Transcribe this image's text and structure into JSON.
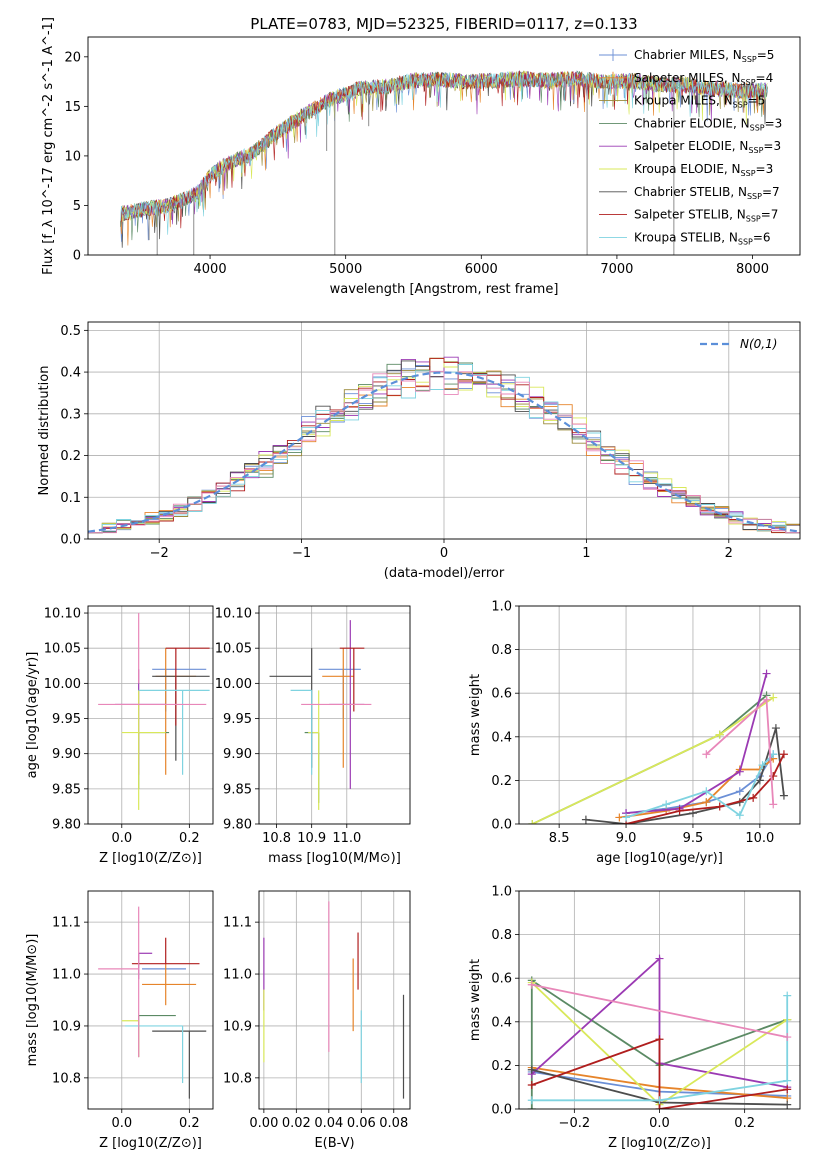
{
  "figure_title": "PLATE=0783, MJD=52325, FIBERID=0117, z=0.133",
  "colors": [
    "#6b8fd6",
    "#e6842a",
    "#9a8a3a",
    "#5b8a64",
    "#9b3ab3",
    "#d9e85a",
    "#4d4d4d",
    "#b01e1e",
    "#7fd3e0",
    "#e887b9"
  ],
  "chart_data": [
    {
      "id": "spectrum",
      "type": "line",
      "title": "PLATE=0783, MJD=52325, FIBERID=0117, z=0.133",
      "xlabel": "wavelength [Angstrom, rest frame]",
      "ylabel": "Flux [f_λ 10^-17 erg cm^-2 s^-1 A^-1]",
      "xlim": [
        3100,
        8350
      ],
      "ylim": [
        0,
        22
      ],
      "xticks": [
        4000,
        5000,
        6000,
        7000,
        8000
      ],
      "yticks": [
        0,
        5,
        10,
        15,
        20
      ],
      "grid": false,
      "legend_position": "right",
      "legend": [
        "Chabrier MILES, N_SSP=5",
        "Salpeter MILES, N_SSP=4",
        "Kroupa MILES, N_SSP=5",
        "Chabrier ELODIE, N_SSP=3",
        "Salpeter ELODIE, N_SSP=3",
        "Kroupa ELODIE, N_SSP=3",
        "Chabrier STELIB, N_SSP=7",
        "Salpeter STELIB, N_SSP=7",
        "Kroupa STELIB, N_SSP=6"
      ],
      "series_colors": [
        "#6b8fd6",
        "#e6842a",
        "#9a8a3a",
        "#5b8a64",
        "#9b3ab3",
        "#d9e85a",
        "#4d4d4d",
        "#b01e1e",
        "#7fd3e0"
      ],
      "x": [
        3350,
        3500,
        3700,
        3900,
        4000,
        4100,
        4200,
        4300,
        4500,
        4700,
        4900,
        5100,
        5300,
        5500,
        5700,
        5900,
        6100,
        6300,
        6500,
        6700,
        6900,
        7100,
        7300,
        7500,
        7700,
        7900,
        8100
      ],
      "y": [
        4.2,
        4.6,
        5.0,
        6.2,
        8.0,
        9.0,
        9.6,
        10.2,
        12.4,
        14.2,
        15.8,
        16.8,
        17.0,
        17.6,
        17.7,
        17.5,
        17.6,
        17.8,
        17.6,
        17.8,
        17.5,
        17.6,
        17.2,
        17.2,
        16.8,
        16.6,
        16.6
      ],
      "spikes": [
        {
          "x": 3550,
          "y": 1.5
        },
        {
          "x": 3610,
          "y": 0.0
        },
        {
          "x": 3880,
          "y": 0.0
        },
        {
          "x": 4920,
          "y": 0.0
        },
        {
          "x": 6780,
          "y": 0.0
        },
        {
          "x": 7420,
          "y": 0.0
        },
        {
          "x": 4860,
          "y": 10.5
        },
        {
          "x": 5170,
          "y": 13.0
        }
      ]
    },
    {
      "id": "residuals",
      "type": "step",
      "xlabel": "(data-model)/error",
      "ylabel": "Normed distribution",
      "xlim": [
        -2.5,
        2.5
      ],
      "ylim": [
        0,
        0.52
      ],
      "xticks": [
        -2,
        -1,
        0,
        1,
        2
      ],
      "yticks": [
        0.0,
        0.1,
        0.2,
        0.3,
        0.4,
        0.5
      ],
      "grid": true,
      "legend_position": "top-right",
      "legend": [
        "N(0,1)"
      ],
      "bin_width": 0.1
    },
    {
      "id": "age_vs_Z",
      "type": "errorbar",
      "xlabel": "Z [log10(Z/Z⊙)]",
      "ylabel": "age [log10(age/yr)]",
      "xlim": [
        -0.1,
        0.27
      ],
      "ylim": [
        9.8,
        10.11
      ],
      "xticks": [
        0.0,
        0.2
      ],
      "yticks": [
        9.8,
        9.85,
        9.9,
        9.95,
        10.0,
        10.05,
        10.1
      ],
      "grid": true,
      "points": [
        {
          "x": 0.13,
          "y": 10.02,
          "xerr": [
            0.04,
            0.12
          ],
          "yerr": [
            0.06,
            0.0
          ],
          "c": 0
        },
        {
          "x": 0.13,
          "y": 10.01,
          "xerr": [
            0.03,
            0.09
          ],
          "yerr": [
            0.14,
            0.04
          ],
          "c": 1
        },
        {
          "x": 0.05,
          "y": 9.93,
          "xerr": [
            0.0,
            0.09
          ],
          "yerr": [
            0.08,
            0.0
          ],
          "c": 3
        },
        {
          "x": 0.05,
          "y": 9.97,
          "xerr": [
            0.07,
            0.08
          ],
          "yerr": [
            0.1,
            0.05
          ],
          "c": 4
        },
        {
          "x": 0.05,
          "y": 9.93,
          "xerr": [
            0.05,
            0.08
          ],
          "yerr": [
            0.11,
            0.06
          ],
          "c": 5
        },
        {
          "x": 0.16,
          "y": 10.01,
          "xerr": [
            0.07,
            0.1
          ],
          "yerr": [
            0.12,
            0.0
          ],
          "c": 6
        },
        {
          "x": 0.16,
          "y": 10.05,
          "xerr": [
            0.03,
            0.1
          ],
          "yerr": [
            0.11,
            0.0
          ],
          "c": 7
        },
        {
          "x": 0.18,
          "y": 9.99,
          "xerr": [
            0.13,
            0.08
          ],
          "yerr": [
            0.12,
            0.0
          ],
          "c": 8
        },
        {
          "x": 0.13,
          "y": 9.97,
          "xerr": [
            0.2,
            0.12
          ],
          "yerr": [
            0.0,
            0.0
          ],
          "c": 9
        },
        {
          "x": 0.05,
          "y": 10.0,
          "xerr": [
            0.0,
            0.0
          ],
          "yerr": [
            0.0,
            0.1
          ],
          "c": 9
        }
      ]
    },
    {
      "id": "age_vs_mass",
      "type": "errorbar",
      "xlabel": "mass [log10(M/M⊙)]",
      "ylabel": "",
      "xlim": [
        10.75,
        11.18
      ],
      "ylim": [
        9.8,
        10.11
      ],
      "xticks": [
        10.8,
        10.9,
        11.0
      ],
      "yticks": [
        9.8,
        9.85,
        9.9,
        9.95,
        10.0,
        10.05,
        10.1
      ],
      "grid": true,
      "points": [
        {
          "x": 10.99,
          "y": 10.02,
          "xerr": [
            0.07,
            0.05
          ],
          "yerr": [
            0.07,
            0.0
          ],
          "c": 0
        },
        {
          "x": 10.99,
          "y": 10.01,
          "xerr": [
            0.06,
            0.03
          ],
          "yerr": [
            0.13,
            0.04
          ],
          "c": 1
        },
        {
          "x": 10.92,
          "y": 9.93,
          "xerr": [
            0.04,
            0.0
          ],
          "yerr": [
            0.1,
            0.0
          ],
          "c": 3
        },
        {
          "x": 11.01,
          "y": 9.97,
          "xerr": [
            0.06,
            0.04
          ],
          "yerr": [
            0.12,
            0.12
          ],
          "c": 4
        },
        {
          "x": 10.92,
          "y": 9.93,
          "xerr": [
            0.03,
            0.0
          ],
          "yerr": [
            0.11,
            0.06
          ],
          "c": 5
        },
        {
          "x": 10.9,
          "y": 10.01,
          "xerr": [
            0.12,
            0.0
          ],
          "yerr": [
            0.13,
            0.04
          ],
          "c": 6
        },
        {
          "x": 11.02,
          "y": 10.05,
          "xerr": [
            0.04,
            0.03
          ],
          "yerr": [
            0.09,
            0.0
          ],
          "c": 7
        },
        {
          "x": 10.9,
          "y": 9.99,
          "xerr": [
            0.06,
            0.0
          ],
          "yerr": [
            0.12,
            0.0
          ],
          "c": 8
        },
        {
          "x": 11.01,
          "y": 9.97,
          "xerr": [
            0.14,
            0.06
          ],
          "yerr": [
            0.0,
            0.0
          ],
          "c": 9
        }
      ]
    },
    {
      "id": "weight_vs_age",
      "type": "line",
      "xlabel": "age [log10(age/yr)]",
      "ylabel": "mass weight",
      "xlim": [
        8.2,
        10.3
      ],
      "ylim": [
        0,
        1.0
      ],
      "xticks": [
        8.5,
        9.0,
        9.5,
        10.0
      ],
      "yticks": [
        0.0,
        0.2,
        0.4,
        0.6,
        0.8,
        1.0
      ],
      "grid": true,
      "series": [
        {
          "c": 0,
          "x": [
            9.0,
            9.3,
            9.6,
            9.85,
            10.0,
            10.1
          ],
          "y": [
            0.05,
            0.07,
            0.1,
            0.15,
            0.22,
            0.32
          ]
        },
        {
          "c": 1,
          "x": [
            8.95,
            9.3,
            9.6,
            9.85,
            10.0,
            10.1
          ],
          "y": [
            0.03,
            0.06,
            0.1,
            0.25,
            0.25,
            0.3
          ]
        },
        {
          "c": 3,
          "x": [
            8.3,
            9.7,
            10.05
          ],
          "y": [
            0.0,
            0.41,
            0.59
          ]
        },
        {
          "c": 4,
          "x": [
            9.0,
            9.4,
            9.85,
            10.05
          ],
          "y": [
            0.05,
            0.07,
            0.24,
            0.69
          ]
        },
        {
          "c": 5,
          "x": [
            8.3,
            9.7,
            10.1
          ],
          "y": [
            0.0,
            0.41,
            0.58
          ]
        },
        {
          "c": 6,
          "x": [
            8.7,
            9.0,
            9.5,
            9.85,
            10.0,
            10.12,
            10.18
          ],
          "y": [
            0.02,
            0.0,
            0.05,
            0.1,
            0.2,
            0.44,
            0.13
          ]
        },
        {
          "c": 7,
          "x": [
            9.0,
            9.4,
            9.7,
            9.95,
            10.1,
            10.18
          ],
          "y": [
            0.0,
            0.06,
            0.08,
            0.12,
            0.22,
            0.32
          ]
        },
        {
          "c": 8,
          "x": [
            9.0,
            9.3,
            9.6,
            9.85,
            10.02,
            10.1
          ],
          "y": [
            0.03,
            0.09,
            0.15,
            0.04,
            0.27,
            0.32
          ]
        },
        {
          "c": 9,
          "x": [
            9.6,
            10.05,
            10.1
          ],
          "y": [
            0.32,
            0.57,
            0.09
          ]
        }
      ]
    },
    {
      "id": "mass_vs_Z",
      "type": "errorbar",
      "xlabel": "Z [log10(Z/Z⊙)]",
      "ylabel": "mass [log10(M/M⊙)]",
      "xlim": [
        -0.1,
        0.27
      ],
      "ylim": [
        10.74,
        11.16
      ],
      "xticks": [
        0.0,
        0.2
      ],
      "yticks": [
        10.8,
        10.9,
        11.0,
        11.1
      ],
      "grid": true,
      "points": [
        {
          "x": 0.13,
          "y": 11.01,
          "xerr": [
            0.07,
            0.06
          ],
          "yerr": [
            0.0,
            0.0
          ],
          "c": 0
        },
        {
          "x": 0.13,
          "y": 10.98,
          "xerr": [
            0.07,
            0.09
          ],
          "yerr": [
            0.04,
            0.04
          ],
          "c": 1
        },
        {
          "x": 0.05,
          "y": 10.92,
          "xerr": [
            0.0,
            0.11
          ],
          "yerr": [
            0.08,
            0.0
          ],
          "c": 3
        },
        {
          "x": 0.05,
          "y": 11.04,
          "xerr": [
            0.0,
            0.04
          ],
          "yerr": [
            0.05,
            0.0
          ],
          "c": 4
        },
        {
          "x": 0.05,
          "y": 10.91,
          "xerr": [
            0.05,
            0.0
          ],
          "yerr": [
            0.07,
            0.0
          ],
          "c": 5
        },
        {
          "x": 0.2,
          "y": 10.89,
          "xerr": [
            0.11,
            0.05
          ],
          "yerr": [
            0.13,
            0.0
          ],
          "c": 6
        },
        {
          "x": 0.13,
          "y": 11.02,
          "xerr": [
            0.1,
            0.1
          ],
          "yerr": [
            0.0,
            0.05
          ],
          "c": 7
        },
        {
          "x": 0.18,
          "y": 10.9,
          "xerr": [
            0.17,
            0.0
          ],
          "yerr": [
            0.11,
            0.0
          ],
          "c": 8
        },
        {
          "x": 0.05,
          "y": 11.01,
          "xerr": [
            0.12,
            0.0
          ],
          "yerr": [
            0.17,
            0.12
          ],
          "c": 9
        }
      ]
    },
    {
      "id": "mass_vs_EBV",
      "type": "errorbar",
      "xlabel": "E(B-V)",
      "ylabel": "",
      "xlim": [
        -0.003,
        0.09
      ],
      "ylim": [
        10.74,
        11.16
      ],
      "xticks": [
        0.0,
        0.02,
        0.04,
        0.06,
        0.08
      ],
      "yticks": [
        10.8,
        10.9,
        11.0,
        11.1
      ],
      "grid": true,
      "points": [
        {
          "x": 0.0,
          "y": 11.0,
          "xerr": [
            0,
            0
          ],
          "yerr": [
            0.07,
            0.07
          ],
          "c": 4
        },
        {
          "x": 0.0,
          "y": 10.9,
          "xerr": [
            0,
            0
          ],
          "yerr": [
            0.07,
            0.07
          ],
          "c": 5
        },
        {
          "x": 0.04,
          "y": 11.02,
          "xerr": [
            0,
            0
          ],
          "yerr": [
            0.17,
            0.12
          ],
          "c": 9
        },
        {
          "x": 0.055,
          "y": 10.98,
          "xerr": [
            0,
            0
          ],
          "yerr": [
            0.09,
            0.05
          ],
          "c": 1
        },
        {
          "x": 0.058,
          "y": 11.03,
          "xerr": [
            0,
            0
          ],
          "yerr": [
            0.06,
            0.05
          ],
          "c": 7
        },
        {
          "x": 0.06,
          "y": 10.86,
          "xerr": [
            0,
            0
          ],
          "yerr": [
            0.07,
            0.07
          ],
          "c": 8
        },
        {
          "x": 0.086,
          "y": 10.86,
          "xerr": [
            0,
            0
          ],
          "yerr": [
            0.1,
            0.1
          ],
          "c": 6
        }
      ]
    },
    {
      "id": "weight_vs_Z",
      "type": "line",
      "xlabel": "Z [log10(Z/Z⊙)]",
      "ylabel": "mass weight",
      "xlim": [
        -0.33,
        0.33
      ],
      "ylim": [
        0,
        1.0
      ],
      "xticks": [
        -0.2,
        0.0,
        0.2
      ],
      "yticks": [
        0.0,
        0.2,
        0.4,
        0.6,
        0.8,
        1.0
      ],
      "grid": true,
      "series": [
        {
          "c": 0,
          "x": [
            -0.3,
            0.0,
            0.3
          ],
          "y": [
            0.17,
            0.08,
            0.06
          ]
        },
        {
          "c": 1,
          "x": [
            -0.3,
            0.0,
            0.3
          ],
          "y": [
            0.19,
            0.1,
            0.05
          ]
        },
        {
          "c": 3,
          "x": [
            -0.3,
            -0.3,
            0.0,
            0.3
          ],
          "y": [
            0.0,
            0.59,
            0.2,
            0.41
          ]
        },
        {
          "c": 4,
          "x": [
            -0.3,
            0.0,
            0.0,
            0.3
          ],
          "y": [
            0.16,
            0.69,
            0.21,
            0.1
          ]
        },
        {
          "c": 5,
          "x": [
            -0.3,
            0.0,
            0.3
          ],
          "y": [
            0.58,
            0.02,
            0.41
          ]
        },
        {
          "c": 6,
          "x": [
            -0.3,
            0.0,
            0.3
          ],
          "y": [
            0.18,
            0.03,
            0.02
          ]
        },
        {
          "c": 7,
          "x": [
            -0.3,
            0.0,
            0.0,
            0.3
          ],
          "y": [
            0.11,
            0.32,
            0.0,
            0.09
          ]
        },
        {
          "c": 8,
          "x": [
            -0.3,
            0.0,
            0.3,
            0.3
          ],
          "y": [
            0.04,
            0.04,
            0.13,
            0.52
          ]
        },
        {
          "c": 9,
          "x": [
            -0.3,
            0.3
          ],
          "y": [
            0.57,
            0.33
          ]
        }
      ]
    }
  ]
}
